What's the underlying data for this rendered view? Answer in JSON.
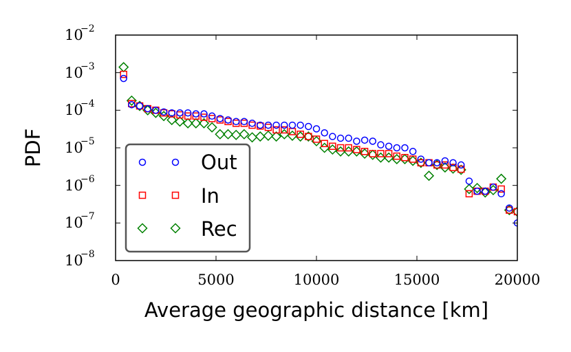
{
  "chart_data": {
    "type": "scatter",
    "xlabel": "Average geographic distance [km]",
    "ylabel": "PDF",
    "xlim": [
      0,
      20000
    ],
    "ylim": [
      1e-08,
      0.01
    ],
    "yscale": "log",
    "x_ticks": [
      "0",
      "5000",
      "10000",
      "15000",
      "20000"
    ],
    "y_ticks": [
      {
        "base": "10",
        "exp": "−8",
        "value": 1e-08
      },
      {
        "base": "10",
        "exp": "−7",
        "value": 1e-07
      },
      {
        "base": "10",
        "exp": "−6",
        "value": 1e-06
      },
      {
        "base": "10",
        "exp": "−5",
        "value": 1e-05
      },
      {
        "base": "10",
        "exp": "−4",
        "value": 0.0001
      },
      {
        "base": "10",
        "exp": "−3",
        "value": 0.001
      },
      {
        "base": "10",
        "exp": "−2",
        "value": 0.01
      }
    ],
    "legend_position": "lower-left",
    "series": [
      {
        "name": "Out",
        "marker": "circle",
        "color": "#0000ff",
        "x": [
          400,
          800,
          1200,
          1600,
          2000,
          2400,
          2800,
          3200,
          3600,
          4000,
          4400,
          4800,
          5200,
          5600,
          6000,
          6400,
          6800,
          7200,
          7600,
          8000,
          8400,
          8800,
          9200,
          9600,
          10000,
          10400,
          10800,
          11200,
          11600,
          12000,
          12400,
          12800,
          13200,
          13600,
          14000,
          14400,
          14800,
          15200,
          15600,
          16000,
          16400,
          16800,
          17200,
          17600,
          18000,
          18400,
          18800,
          19200,
          19600,
          20000
        ],
        "y": [
          0.0007,
          0.00014,
          0.00013,
          0.00011,
          0.0001,
          9e-05,
          8.5e-05,
          8.5e-05,
          8.5e-05,
          8e-05,
          8e-05,
          7e-05,
          6e-05,
          5.5e-05,
          5e-05,
          5e-05,
          4.5e-05,
          4e-05,
          4e-05,
          4e-05,
          4e-05,
          4e-05,
          4e-05,
          3.7e-05,
          3.2e-05,
          2.5e-05,
          2e-05,
          1.8e-05,
          1.8e-05,
          1.5e-05,
          1.6e-05,
          1.5e-05,
          1.2e-05,
          1.1e-05,
          1e-05,
          1e-05,
          8e-06,
          5e-06,
          4e-06,
          4e-06,
          4.5e-06,
          4e-06,
          3.5e-06,
          1.3e-06,
          7e-07,
          7e-07,
          9e-07,
          6e-07,
          2.5e-07,
          1e-07
        ]
      },
      {
        "name": "In",
        "marker": "square",
        "color": "#ff0000",
        "x": [
          400,
          800,
          1200,
          1600,
          2000,
          2400,
          2800,
          3200,
          3600,
          4000,
          4400,
          4800,
          5200,
          5600,
          6000,
          6400,
          6800,
          7200,
          7600,
          8000,
          8400,
          8800,
          9200,
          9600,
          10000,
          10400,
          10800,
          11200,
          11600,
          12000,
          12400,
          12800,
          13200,
          13600,
          14000,
          14400,
          14800,
          15200,
          15600,
          16000,
          16400,
          16800,
          17200,
          17600,
          18000,
          18400,
          18800,
          19200,
          19600,
          20000
        ],
        "y": [
          0.0009,
          0.00015,
          0.00013,
          0.00011,
          0.0001,
          8.5e-05,
          8e-05,
          7.5e-05,
          7e-05,
          7e-05,
          6.5e-05,
          6e-05,
          5.5e-05,
          5e-05,
          4.5e-05,
          4.5e-05,
          4e-05,
          3.8e-05,
          3.5e-05,
          3e-05,
          3e-05,
          2.7e-05,
          2.3e-05,
          2e-05,
          1.7e-05,
          1.3e-05,
          1.1e-05,
          1e-05,
          1e-05,
          9e-06,
          8e-06,
          7e-06,
          7e-06,
          7e-06,
          6e-06,
          5.5e-06,
          5e-06,
          4e-06,
          4e-06,
          3.5e-06,
          3.5e-06,
          3e-06,
          2.7e-06,
          6e-07,
          7e-07,
          7e-07,
          9e-07,
          8e-07,
          2.2e-07,
          2e-07
        ]
      },
      {
        "name": "Rec",
        "marker": "diamond",
        "color": "#008000",
        "x": [
          400,
          800,
          1200,
          1600,
          2000,
          2400,
          2800,
          3200,
          3600,
          4000,
          4400,
          4800,
          5200,
          5600,
          6000,
          6400,
          6800,
          7200,
          7600,
          8000,
          8400,
          8800,
          9200,
          9600,
          10000,
          10400,
          10800,
          11200,
          11600,
          12000,
          12400,
          12800,
          13200,
          13600,
          14000,
          14400,
          14800,
          15200,
          15600,
          16000,
          16400,
          16800,
          17200,
          17600,
          18000,
          18400,
          18800,
          19200,
          19600,
          20000
        ],
        "y": [
          0.0014,
          0.00018,
          0.00013,
          0.0001,
          8.5e-05,
          7e-05,
          5.5e-05,
          5e-05,
          4.5e-05,
          4.5e-05,
          4.5e-05,
          3.5e-05,
          2.3e-05,
          2.3e-05,
          2.2e-05,
          2.3e-05,
          1.9e-05,
          2e-05,
          2.1e-05,
          2e-05,
          2.3e-05,
          2.1e-05,
          2e-05,
          2e-05,
          1.5e-05,
          1e-05,
          9e-06,
          8e-06,
          8e-06,
          8e-06,
          7e-06,
          6.5e-06,
          5.5e-06,
          5.5e-06,
          5e-06,
          5e-06,
          4.5e-06,
          4e-06,
          1.8e-06,
          3.5e-06,
          3e-06,
          2.8e-06,
          2.6e-06,
          8e-07,
          8.5e-07,
          6.5e-07,
          7.5e-07,
          1.5e-06,
          2.2e-07,
          2e-07
        ]
      }
    ]
  }
}
